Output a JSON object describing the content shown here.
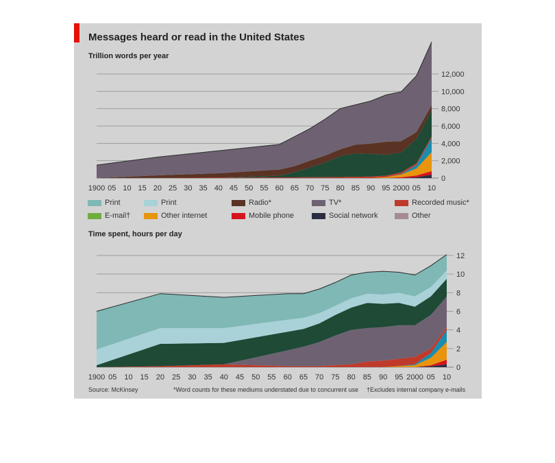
{
  "title": "Messages heard or read in the United States",
  "source": "Source: McKinsey",
  "note_asterisk": "*Word counts for these mediums understated due to concurrent use",
  "note_dagger": "†Excludes internal company e-mails",
  "legend": [
    {
      "label": "Print",
      "color": "#7fb8b5"
    },
    {
      "label": "Print",
      "color": "#a9d1d8"
    },
    {
      "label": "Radio*",
      "color": "#5a3324"
    },
    {
      "label": "TV*",
      "color": "#6e6272"
    },
    {
      "label": "Recorded music*",
      "color": "#c03a2b"
    },
    {
      "label": "E-mail†",
      "color": "#6fae3e"
    },
    {
      "label": "Other internet",
      "color": "#e8940c"
    },
    {
      "label": "Mobile phone",
      "color": "#d7141c"
    },
    {
      "label": "Social network",
      "color": "#2b2e42"
    },
    {
      "label": "Other",
      "color": "#a58b96"
    }
  ],
  "chart_data": [
    {
      "type": "area",
      "title": "Trillion words per year",
      "x_tick_labels": [
        "1900",
        "05",
        "10",
        "15",
        "20",
        "25",
        "30",
        "35",
        "40",
        "45",
        "50",
        "55",
        "60",
        "65",
        "70",
        "75",
        "80",
        "85",
        "90",
        "95",
        "2000",
        "05",
        "10"
      ],
      "x": [
        1900,
        1920,
        1940,
        1960,
        1965,
        1970,
        1975,
        1980,
        1985,
        1990,
        1995,
        2000,
        2005,
        2010
      ],
      "ylim": [
        0,
        12000
      ],
      "y_ticks": [
        0,
        2000,
        4000,
        6000,
        8000,
        10000,
        12000
      ],
      "y_tick_labels": [
        "0",
        "2,000",
        "4,000",
        "6,000",
        "8,000",
        "10,000",
        "12,000"
      ],
      "series": [
        {
          "color": "#2b2e42",
          "values": [
            0,
            0,
            0,
            0,
            0,
            0,
            0,
            0,
            0,
            0,
            0,
            0,
            100,
            400
          ]
        },
        {
          "color": "#d7141c",
          "values": [
            0,
            0,
            0,
            0,
            0,
            0,
            0,
            0,
            0,
            0,
            0,
            100,
            200,
            400
          ]
        },
        {
          "color": "#e8940c",
          "values": [
            0,
            0,
            0,
            0,
            0,
            0,
            0,
            0,
            0,
            0,
            100,
            300,
            800,
            2200
          ]
        },
        {
          "color": "#1a8cae",
          "values": [
            0,
            0,
            0,
            0,
            0,
            0,
            0,
            0,
            0,
            0,
            0,
            50,
            400,
            1600
          ]
        },
        {
          "color": "#c03a2b",
          "values": [
            0,
            20,
            50,
            80,
            80,
            100,
            100,
            120,
            150,
            180,
            180,
            200,
            200,
            200
          ]
        },
        {
          "color": "#1e4a36",
          "values": [
            0,
            0,
            0,
            200,
            600,
            1100,
            1700,
            2400,
            2700,
            2600,
            2400,
            2300,
            2800,
            3000
          ]
        },
        {
          "color": "#5a3324",
          "values": [
            0,
            300,
            500,
            700,
            700,
            800,
            800,
            800,
            1000,
            1200,
            1500,
            1300,
            800,
            600
          ]
        },
        {
          "color": "#a9d1d8",
          "values": [
            0,
            0,
            0,
            0,
            0,
            0,
            0,
            0,
            0,
            0,
            0,
            0,
            0,
            0
          ]
        },
        {
          "color": "#7fb8b5",
          "values": [
            0,
            0,
            0,
            0,
            0,
            0,
            0,
            0,
            0,
            0,
            0,
            0,
            0,
            0
          ]
        },
        {
          "color": "#6fae3e",
          "values": [
            0,
            0,
            0,
            0,
            0,
            0,
            0,
            0,
            0,
            0,
            0,
            0,
            0,
            0
          ]
        },
        {
          "color": "#6e6272",
          "values": [
            1500,
            2100,
            2600,
            2900,
            3400,
            3700,
            4200,
            4700,
            4600,
            4900,
            5400,
            5700,
            6500,
            7300
          ]
        }
      ]
    },
    {
      "type": "area",
      "title": "Time spent, hours per day",
      "x_tick_labels": [
        "1900",
        "05",
        "10",
        "15",
        "20",
        "25",
        "30",
        "35",
        "40",
        "45",
        "50",
        "55",
        "60",
        "65",
        "70",
        "75",
        "80",
        "85",
        "90",
        "95",
        "2000",
        "05",
        "10"
      ],
      "x": [
        1900,
        1920,
        1940,
        1960,
        1965,
        1970,
        1975,
        1980,
        1985,
        1990,
        1995,
        2000,
        2005,
        2010
      ],
      "ylim": [
        0,
        12
      ],
      "y_ticks": [
        0,
        2,
        4,
        6,
        8,
        10,
        12
      ],
      "y_tick_labels": [
        "0",
        "2",
        "4",
        "6",
        "8",
        "10",
        "12"
      ],
      "series": [
        {
          "color": "#2b2e42",
          "values": [
            0,
            0,
            0,
            0,
            0,
            0,
            0,
            0,
            0,
            0,
            0,
            0,
            0.1,
            0.3
          ]
        },
        {
          "color": "#d7141c",
          "values": [
            0,
            0,
            0,
            0,
            0,
            0,
            0,
            0,
            0,
            0,
            0,
            0,
            0.1,
            0.5
          ]
        },
        {
          "color": "#e8940c",
          "values": [
            0,
            0,
            0,
            0,
            0,
            0,
            0,
            0,
            0,
            0,
            0.1,
            0.2,
            0.8,
            1.9
          ]
        },
        {
          "color": "#1a8cae",
          "values": [
            0,
            0,
            0,
            0,
            0,
            0,
            0,
            0,
            0,
            0,
            0,
            0.1,
            0.5,
            1.3
          ]
        },
        {
          "color": "#c03a2b",
          "values": [
            0,
            0.1,
            0.3,
            0.1,
            0.1,
            0.1,
            0.2,
            0.3,
            0.6,
            0.7,
            0.8,
            0.8,
            0.5,
            0.3
          ]
        },
        {
          "color": "#6e6272",
          "values": [
            0,
            0,
            0,
            1.7,
            2.1,
            2.6,
            3.2,
            3.7,
            3.6,
            3.6,
            3.6,
            3.4,
            3.6,
            3.3
          ]
        },
        {
          "color": "#1e4a36",
          "values": [
            0.2,
            2.4,
            2.3,
            2.0,
            1.9,
            2.0,
            2.2,
            2.4,
            2.7,
            2.5,
            2.4,
            2.0,
            2.0,
            1.9
          ]
        },
        {
          "color": "#a9d1d8",
          "values": [
            1.7,
            1.7,
            1.6,
            1.3,
            1.2,
            1.1,
            1.0,
            1.0,
            1.0,
            1.0,
            1.1,
            1.1,
            1.0,
            0.9
          ]
        },
        {
          "color": "#7fb8b5",
          "values": [
            4.1,
            3.7,
            3.3,
            2.8,
            2.6,
            2.6,
            2.5,
            2.5,
            2.3,
            2.5,
            2.2,
            2.3,
            2.3,
            1.7
          ]
        }
      ]
    }
  ]
}
